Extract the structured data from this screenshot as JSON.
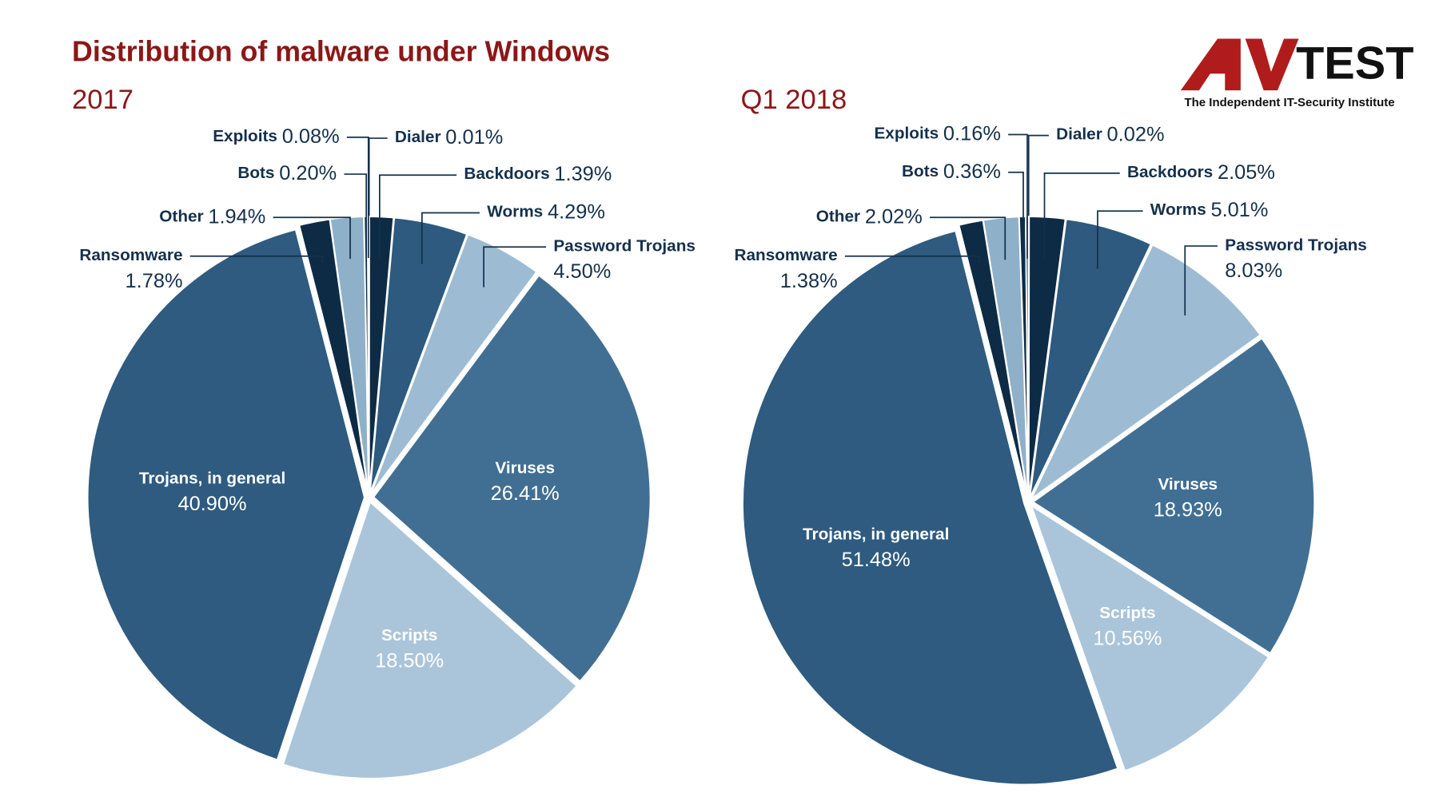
{
  "header": {
    "title": "Distribution of malware under Windows",
    "logo_text": "TEST",
    "logo_subtitle": "The Independent IT-Security Institute"
  },
  "chart_data": [
    {
      "type": "pie",
      "title": "2017",
      "categories": [
        "Dialer",
        "Backdoors",
        "Worms",
        "Password Trojans",
        "Viruses",
        "Scripts",
        "Trojans, in general",
        "Ransomware",
        "Other",
        "Bots",
        "Exploits"
      ],
      "values": [
        0.01,
        1.39,
        4.29,
        4.5,
        26.41,
        18.5,
        40.9,
        1.78,
        1.94,
        0.2,
        0.08
      ],
      "value_labels": [
        "0.01%",
        "1.39%",
        "4.29%",
        "4.50%",
        "26.41%",
        "18.50%",
        "40.90%",
        "1.78%",
        "1.94%",
        "0.20%",
        "0.08%"
      ],
      "colors": [
        "#0e2b45",
        "#0e2b45",
        "#2d5a7e",
        "#9dbcd3",
        "#416f93",
        "#aac5da",
        "#2e5b7f",
        "#0e2b45",
        "#8fb0c9",
        "#0e2b45",
        "#2d5a7e"
      ]
    },
    {
      "type": "pie",
      "title": "Q1 2018",
      "categories": [
        "Dialer",
        "Backdoors",
        "Worms",
        "Password Trojans",
        "Viruses",
        "Scripts",
        "Trojans, in general",
        "Ransomware",
        "Other",
        "Bots",
        "Exploits"
      ],
      "values": [
        0.02,
        2.05,
        5.01,
        8.03,
        18.93,
        10.56,
        51.48,
        1.38,
        2.02,
        0.36,
        0.16
      ],
      "value_labels": [
        "0.02%",
        "2.05%",
        "5.01%",
        "8.03%",
        "18.93%",
        "10.56%",
        "51.48%",
        "1.38%",
        "2.02%",
        "0.36%",
        "0.16%"
      ],
      "colors": [
        "#0e2b45",
        "#0e2b45",
        "#2d5a7e",
        "#9dbcd3",
        "#416f93",
        "#aac5da",
        "#2e5b7f",
        "#0e2b45",
        "#8fb0c9",
        "#0e2b45",
        "#2d5a7e"
      ]
    }
  ]
}
